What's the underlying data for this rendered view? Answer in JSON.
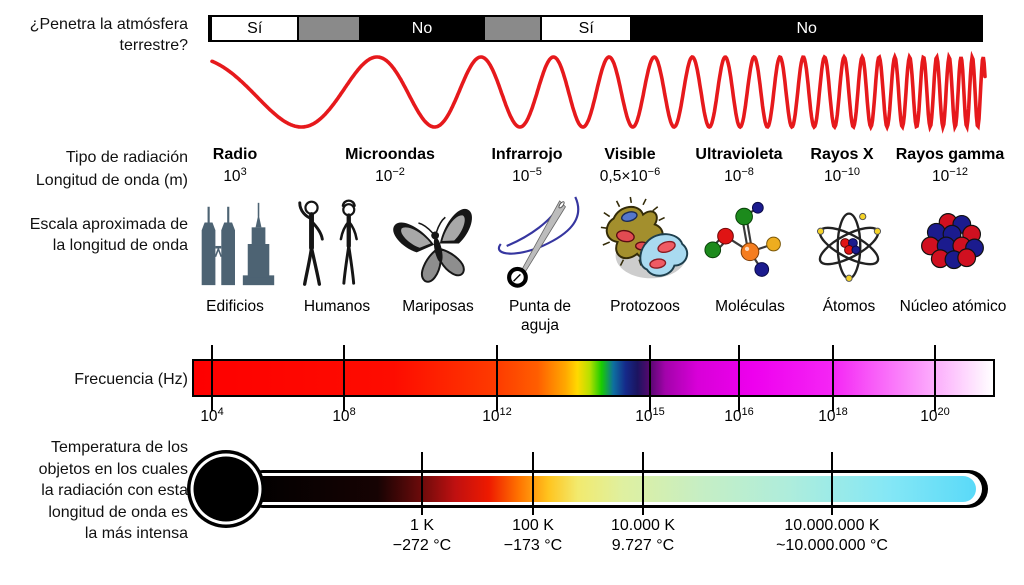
{
  "penetration": {
    "label_line1": "¿Penetra la atmósfera",
    "label_line2": "terrestre?",
    "segments": [
      {
        "label": "Sí",
        "type": "yes"
      },
      {
        "label": "",
        "type": "partial"
      },
      {
        "label": "No",
        "type": "no"
      },
      {
        "label": "",
        "type": "partial"
      },
      {
        "label": "Sí",
        "type": "yes"
      },
      {
        "label": "No",
        "type": "no"
      }
    ]
  },
  "radiation": {
    "type_label": "Tipo de radiación",
    "wavelength_label": "Longitud de onda (m)",
    "types": [
      {
        "name": "Radio",
        "wavelength_prefix": "10",
        "wavelength_exp": "3"
      },
      {
        "name": "Microondas",
        "wavelength_prefix": "10",
        "wavelength_exp": "−2"
      },
      {
        "name": "Infrarrojo",
        "wavelength_prefix": "10",
        "wavelength_exp": "−5"
      },
      {
        "name": "Visible",
        "wavelength_prefix": "0,5×10",
        "wavelength_exp": "−6"
      },
      {
        "name": "Ultravioleta",
        "wavelength_prefix": "10",
        "wavelength_exp": "−8"
      },
      {
        "name": "Rayos X",
        "wavelength_prefix": "10",
        "wavelength_exp": "−10"
      },
      {
        "name": "Rayos gamma",
        "wavelength_prefix": "10",
        "wavelength_exp": "−12"
      }
    ]
  },
  "scale": {
    "label_line1": "Escala aproximada de",
    "label_line2": "la longitud de onda",
    "items": [
      {
        "label": "Edificios",
        "icon": "buildings-icon"
      },
      {
        "label": "Humanos",
        "icon": "humans-icon"
      },
      {
        "label": "Mariposas",
        "icon": "butterfly-icon"
      },
      {
        "label": "Punta de aguja",
        "icon": "needle-icon"
      },
      {
        "label": "Protozoos",
        "icon": "protozoa-icon"
      },
      {
        "label": "Moléculas",
        "icon": "molecule-icon"
      },
      {
        "label": "Átomos",
        "icon": "atom-icon"
      },
      {
        "label": "Núcleo atómico",
        "icon": "nucleus-icon"
      }
    ]
  },
  "frequency": {
    "label": "Frecuencia (Hz)",
    "ticks": [
      {
        "prefix": "10",
        "exp": "4"
      },
      {
        "prefix": "10",
        "exp": "8"
      },
      {
        "prefix": "10",
        "exp": "12"
      },
      {
        "prefix": "10",
        "exp": "15"
      },
      {
        "prefix": "10",
        "exp": "16"
      },
      {
        "prefix": "10",
        "exp": "18"
      },
      {
        "prefix": "10",
        "exp": "20"
      }
    ]
  },
  "temperature": {
    "label_lines": [
      "Temperatura de los",
      "objetos en los cuales",
      "la radiación con esta",
      "longitud de onda es",
      "la más intensa"
    ],
    "ticks": [
      {
        "kelvin": "1 K",
        "celsius": "−272 °C"
      },
      {
        "kelvin": "100 K",
        "celsius": "−173 °C"
      },
      {
        "kelvin": "10.000 K",
        "celsius": "9.727 °C"
      },
      {
        "kelvin": "10.000.000 K",
        "celsius": "~10.000.000 °C"
      }
    ]
  },
  "colors": {
    "wave_red": "#e6191c",
    "building_slate": "#4d6373",
    "bar_gray": "#8a8a8a",
    "spectrum_magenta": "#ee00ee",
    "thermometer_cyan": "#55d8f8"
  }
}
